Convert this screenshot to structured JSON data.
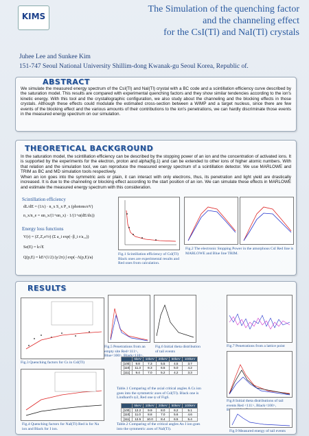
{
  "header": {
    "logo": "KIMS",
    "title": [
      "The Simulation of the quenching factor",
      "and the channeling effect",
      "for the CsI(Tl) and NaI(Tl) crystals"
    ],
    "authors": "Juhee Lee and Sunkee Kim",
    "affiliation": "151-747 Seoul National University Shillim-dong Kwanak-gu Seoul Korea, Republic of."
  },
  "abstract": {
    "heading": "ABSTRACT",
    "text": "We simulate the measured energy spectrum of the CsI(Tl) and NaI(Tl) crystal with a BC code and a scintillation efficiency curve described by the saturation model. This results are compared with experimental quenching factors and they show similar tendencies according to the ion's kinetic energy. With this tool and the crystallographic configuration, we also study about the channeling and the blocking effects in those crystals. Although these effects could modulate the estimated cross-section between a WIMP and a target nucleus, since there are few events of the blocking effect and the various amounts of their contributions to the ion's penetrations, we can hardly discriminate those events in the measured energy spectrum on our simulation."
  },
  "background": {
    "heading": "THEORETICAL BACKGROUND",
    "text": [
      "In the saturation model, the scintillation efficiency can be described by the stopping power of an ion and the concentration of activated ions. It is supported by the experiments for the electron, proton and alpha(fig.1) and can be extended to other ions of higher atomic numbers. With that relation and the simulation tool, we can reproduce the measured energy spectrum of a scintillation detector. We use MARLOWE and TRIM as BC and MD simulation tools respectively.",
      "When an ion goes into the symmetric axis or plain, it can interact with only electrons, thus, its penetration and light yield are drastically increased. It is due to the channeling or blocking effect according to the start position of an ion. We can simulate these effects in MARLOWE and estimate the measured energy spectrum with this consideration."
    ],
    "scint_label": "Scintillation efficiency",
    "scint_eqs": [
      "dL/dE = (1/ε) · n_x S_x P_x (photons/eV)",
      "n_x/n_e = αn_x/(1+αn_x) · 1/(1+α(dE/dx))"
    ],
    "energy_label": "Energy loss functions",
    "energy_eqs": [
      "V(r) = (Z₁Z₂e²/r) (Σ a_i exp(−β_i r/a₁₂))",
      "Se(E) = k√E",
      "Q(p,E) = kE^(1/2) (γ/2π) ∫ exp(−Λ(p,E)/a)"
    ],
    "fig1": "Fig.1 Scintillation efficiency of CsI(Tl) Black ones are experimental results and Red ones from calculation.",
    "fig2": "Fig.2 The electronic Stopping Power in the amorphous CsI Red line is MARLOWE and Blue line TRIM."
  },
  "results": {
    "heading": "RESULTS",
    "fig3": "Fig.3 Quenching factors for Cs in CsI(Tl)",
    "fig4": "Fig.4 Quenching factors for NaI(Tl) Red is for Na ion and Black for I ion.",
    "fig5": "Fig.5 Penetrations from an empty site Red<111>, Blue<100>, Black<110>.",
    "fig6": "Fig.6 Initial theta distribution of tail events",
    "fig7": "Fig.7 Penetrations from a lattice point",
    "fig8": "Fig.8 Initial theta distributions of tail events Red <111>, Black<100>, Blue<110>, Brown <random>",
    "fig9": "Fig.9 Measured energy of tail events",
    "table1": {
      "caption": "Table.1 Comparing of the axial critical angles A Cs ion goes into the symmetric axes of CsI(Tl). Black one is Lindhard's ψ2, Red one ψ of Fig6.",
      "rows": [
        [
          "",
          "5keV",
          "10keV",
          "20keV",
          "50keV",
          "100keV"
        ],
        [
          "[100]",
          "9.8",
          "7.3",
          "5.5",
          "4.5",
          "3.7"
        ],
        [
          "[110]",
          "11.3",
          "8.3",
          "6.5",
          "5.0",
          "4.2"
        ],
        [
          "[111]",
          "9.4",
          "7.0",
          "5.2",
          "4.2",
          "3.3"
        ]
      ]
    },
    "table2": {
      "caption": "Table.2 Comparing of the critical angles An I ion goes into the symmetric axes of NaI(Tl).",
      "rows": [
        [
          "",
          "5keV",
          "10keV",
          "20keV",
          "50keV",
          "100keV"
        ],
        [
          "[100]",
          "12.2",
          "9.9",
          "8.0",
          "6.2",
          "5.1"
        ],
        [
          "[110]",
          "11.0",
          "8.8",
          "7.0",
          "5.6",
          "4.6"
        ],
        [
          "[111]",
          "12.5",
          "10.0",
          "8.4",
          "6.5",
          "5.4"
        ]
      ]
    }
  }
}
